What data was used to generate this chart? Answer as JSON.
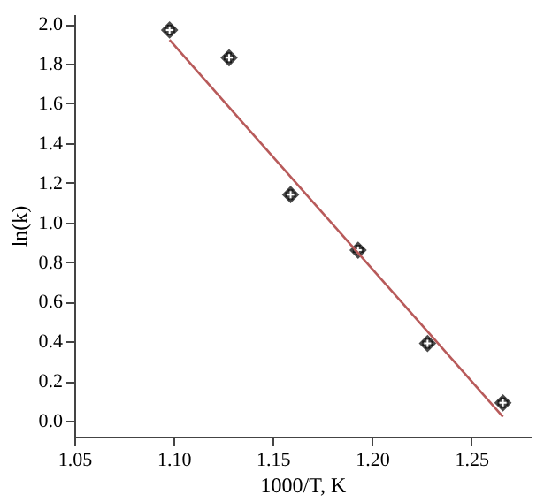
{
  "chart_data": {
    "type": "scatter",
    "xlabel": "1000/T, K",
    "ylabel": "ln(k)",
    "xlim": [
      1.05,
      1.28
    ],
    "xticks": [
      {
        "value": 1.05,
        "label": "1.05"
      },
      {
        "value": 1.1,
        "label": "1.10"
      },
      {
        "value": 1.15,
        "label": "1.15"
      },
      {
        "value": 1.2,
        "label": "1.20"
      },
      {
        "value": 1.25,
        "label": "1.25"
      }
    ],
    "ylim": [
      -0.08,
      2.05
    ],
    "yticks": [
      {
        "value": 0,
        "label": "0.0"
      },
      {
        "value": 0.2,
        "label": "0.2"
      },
      {
        "value": 0.4,
        "label": "0.4"
      },
      {
        "value": 0.6,
        "label": "0.6"
      },
      {
        "value": 0.8,
        "label": "0.8"
      },
      {
        "value": 1,
        "label": "1.0"
      },
      {
        "value": 1.2,
        "label": "1.2"
      },
      {
        "value": 1.4,
        "label": "1.4"
      },
      {
        "value": 1.6,
        "label": "1.6"
      },
      {
        "value": 1.8,
        "label": "1.8"
      },
      {
        "value": 2,
        "label": "2.0"
      }
    ],
    "grid": false,
    "series": [
      {
        "marker": "diamond",
        "color": "#000000",
        "x": [
          1.098,
          1.128,
          1.159,
          1.193,
          1.228,
          1.266
        ],
        "values": [
          1.97,
          1.83,
          1.14,
          0.86,
          0.39,
          0.09
        ]
      },
      {
        "type": "line",
        "color": "#b85a5a",
        "x": [
          1.098,
          1.266
        ],
        "values": [
          1.92,
          0.02
        ]
      }
    ]
  }
}
